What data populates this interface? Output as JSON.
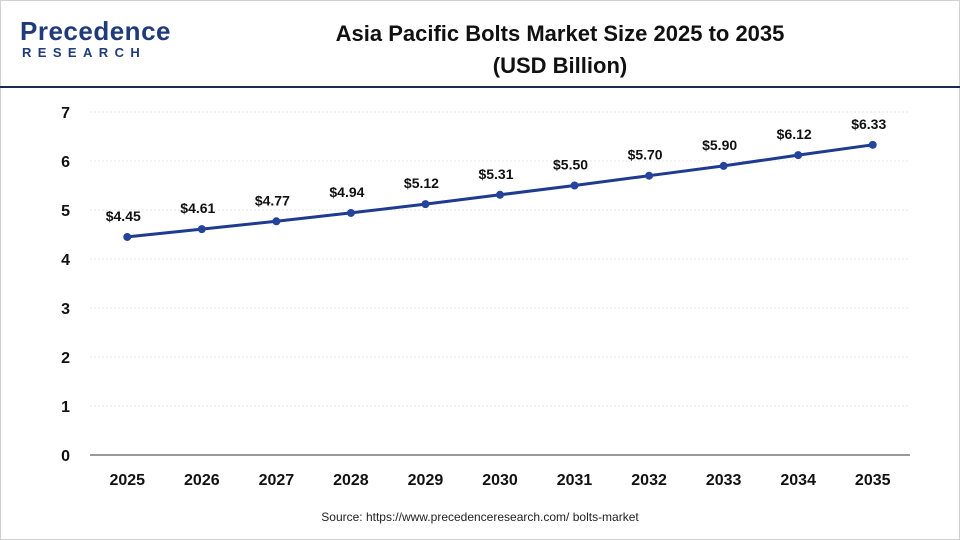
{
  "header": {
    "logo_word": "Precedence",
    "logo_sub": "RESEARCH",
    "title_line1": "Asia Pacific Bolts Market Size 2025 to 2035",
    "title_line2": "(USD Billion)"
  },
  "footer": {
    "source": "Source: https://www.precedenceresearch.com/ bolts-market"
  },
  "colors": {
    "line": "#1f3b8f",
    "marker": "#24449c",
    "grid": "#e6e6e6",
    "brand": "#1f3b7a"
  },
  "chart_data": {
    "type": "line",
    "title": "Asia Pacific Bolts Market Size 2025 to 2035",
    "subtitle": "(USD Billion)",
    "categories": [
      "2025",
      "2026",
      "2027",
      "2028",
      "2029",
      "2030",
      "2031",
      "2032",
      "2033",
      "2034",
      "2035"
    ],
    "values": [
      4.45,
      4.61,
      4.77,
      4.94,
      5.12,
      5.31,
      5.5,
      5.7,
      5.9,
      6.12,
      6.33
    ],
    "data_labels": [
      "$4.45",
      "$4.61",
      "$4.77",
      "$4.94",
      "$5.12",
      "$5.31",
      "$5.50",
      "$5.70",
      "$5.90",
      "$6.12",
      "$6.33"
    ],
    "yticks": [
      "0",
      "1",
      "2",
      "3",
      "4",
      "5",
      "6",
      "7"
    ],
    "ylim": [
      0,
      7
    ],
    "xlabel": "",
    "ylabel": "",
    "grid": true,
    "legend": "none"
  }
}
